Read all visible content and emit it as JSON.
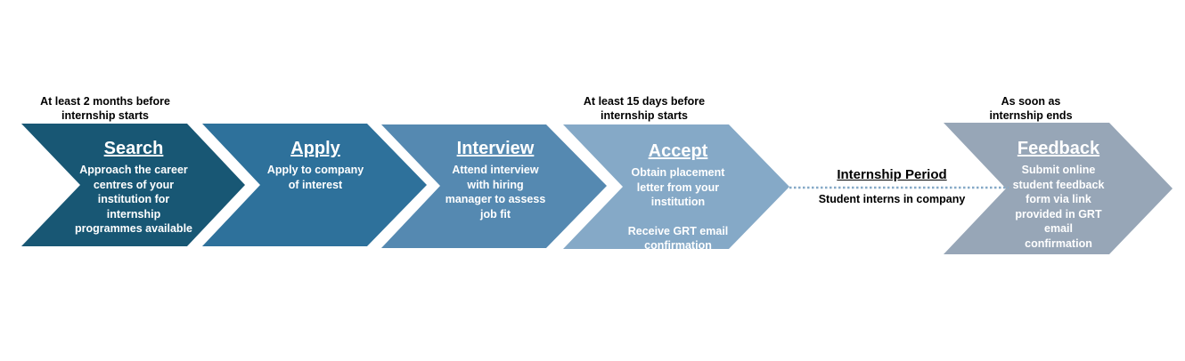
{
  "timing_notes": {
    "search": "At least 2 months before\ninternship starts",
    "accept": "At least 15 days before\ninternship starts",
    "feedback": "As soon as\ninternship ends"
  },
  "steps": [
    {
      "title": "Search",
      "description": "Approach the career\ncentres of your\ninstitution for\ninternship\nprogrammes available",
      "color": "#185774"
    },
    {
      "title": "Apply",
      "description": "Apply to company\nof interest",
      "color": "#2e719b"
    },
    {
      "title": "Interview",
      "description": "Attend interview\nwith hiring\nmanager to assess\njob fit",
      "color": "#5589b1"
    },
    {
      "title": "Accept",
      "description": "Obtain placement\nletter from your\ninstitution",
      "description2": "Receive  GRT email\nconfirmation",
      "color": "#85a9c7"
    },
    {
      "title": "Feedback",
      "description": "Submit online\nstudent feedback\nform via link\nprovided in GRT\nemail\nconfirmation",
      "color": "#97a6b7"
    }
  ],
  "internship_period": {
    "title": "Internship Period",
    "subtitle": "Student interns in company",
    "line_color": "#85a9c7"
  }
}
